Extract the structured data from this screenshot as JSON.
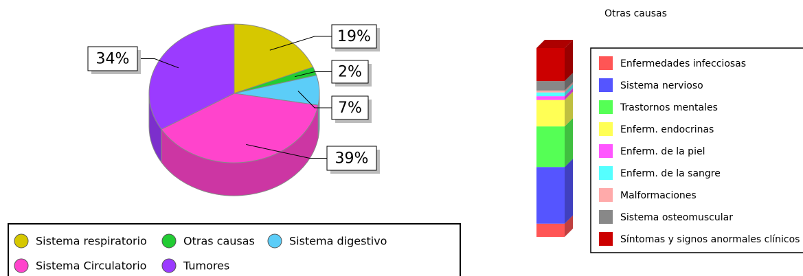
{
  "chart_data": [
    {
      "type": "pie",
      "categories": [
        "Sistema respiratorio",
        "Otras causas",
        "Sistema digestivo",
        "Sistema Circulatorio",
        "Tumores"
      ],
      "values": [
        19,
        2,
        7,
        39,
        34
      ],
      "value_labels": [
        "19%",
        "2%",
        "7%",
        "39%",
        "34%"
      ],
      "colors": [
        "#d6c800",
        "#22cc33",
        "#5ccdf8",
        "#ff44cc",
        "#9b3bff"
      ]
    },
    {
      "type": "stacked_bar",
      "title": "Otras causas",
      "series": [
        {
          "name": "Enfermedades infecciosas",
          "color": "#ff5555",
          "values": [
            7
          ]
        },
        {
          "name": "Sistema nervioso",
          "color": "#5555ff",
          "values": [
            30
          ]
        },
        {
          "name": "Trastornos mentales",
          "color": "#55ff55",
          "values": [
            21.5
          ]
        },
        {
          "name": "Enferm. endocrinas",
          "color": "#ffff55",
          "values": [
            14
          ]
        },
        {
          "name": "Enferm. de la piel",
          "color": "#ff55ff",
          "values": [
            2
          ]
        },
        {
          "name": "Enferm. de la sangre",
          "color": "#55ffff",
          "values": [
            2
          ]
        },
        {
          "name": "Malformaciones",
          "color": "#ffaaaa",
          "values": [
            1
          ]
        },
        {
          "name": "Sistema osteomuscular",
          "color": "#888888",
          "values": [
            5
          ]
        },
        {
          "name": "Síntomas y signos anormales clínicos",
          "color": "#cc0000",
          "values": [
            17.5
          ]
        }
      ]
    }
  ]
}
